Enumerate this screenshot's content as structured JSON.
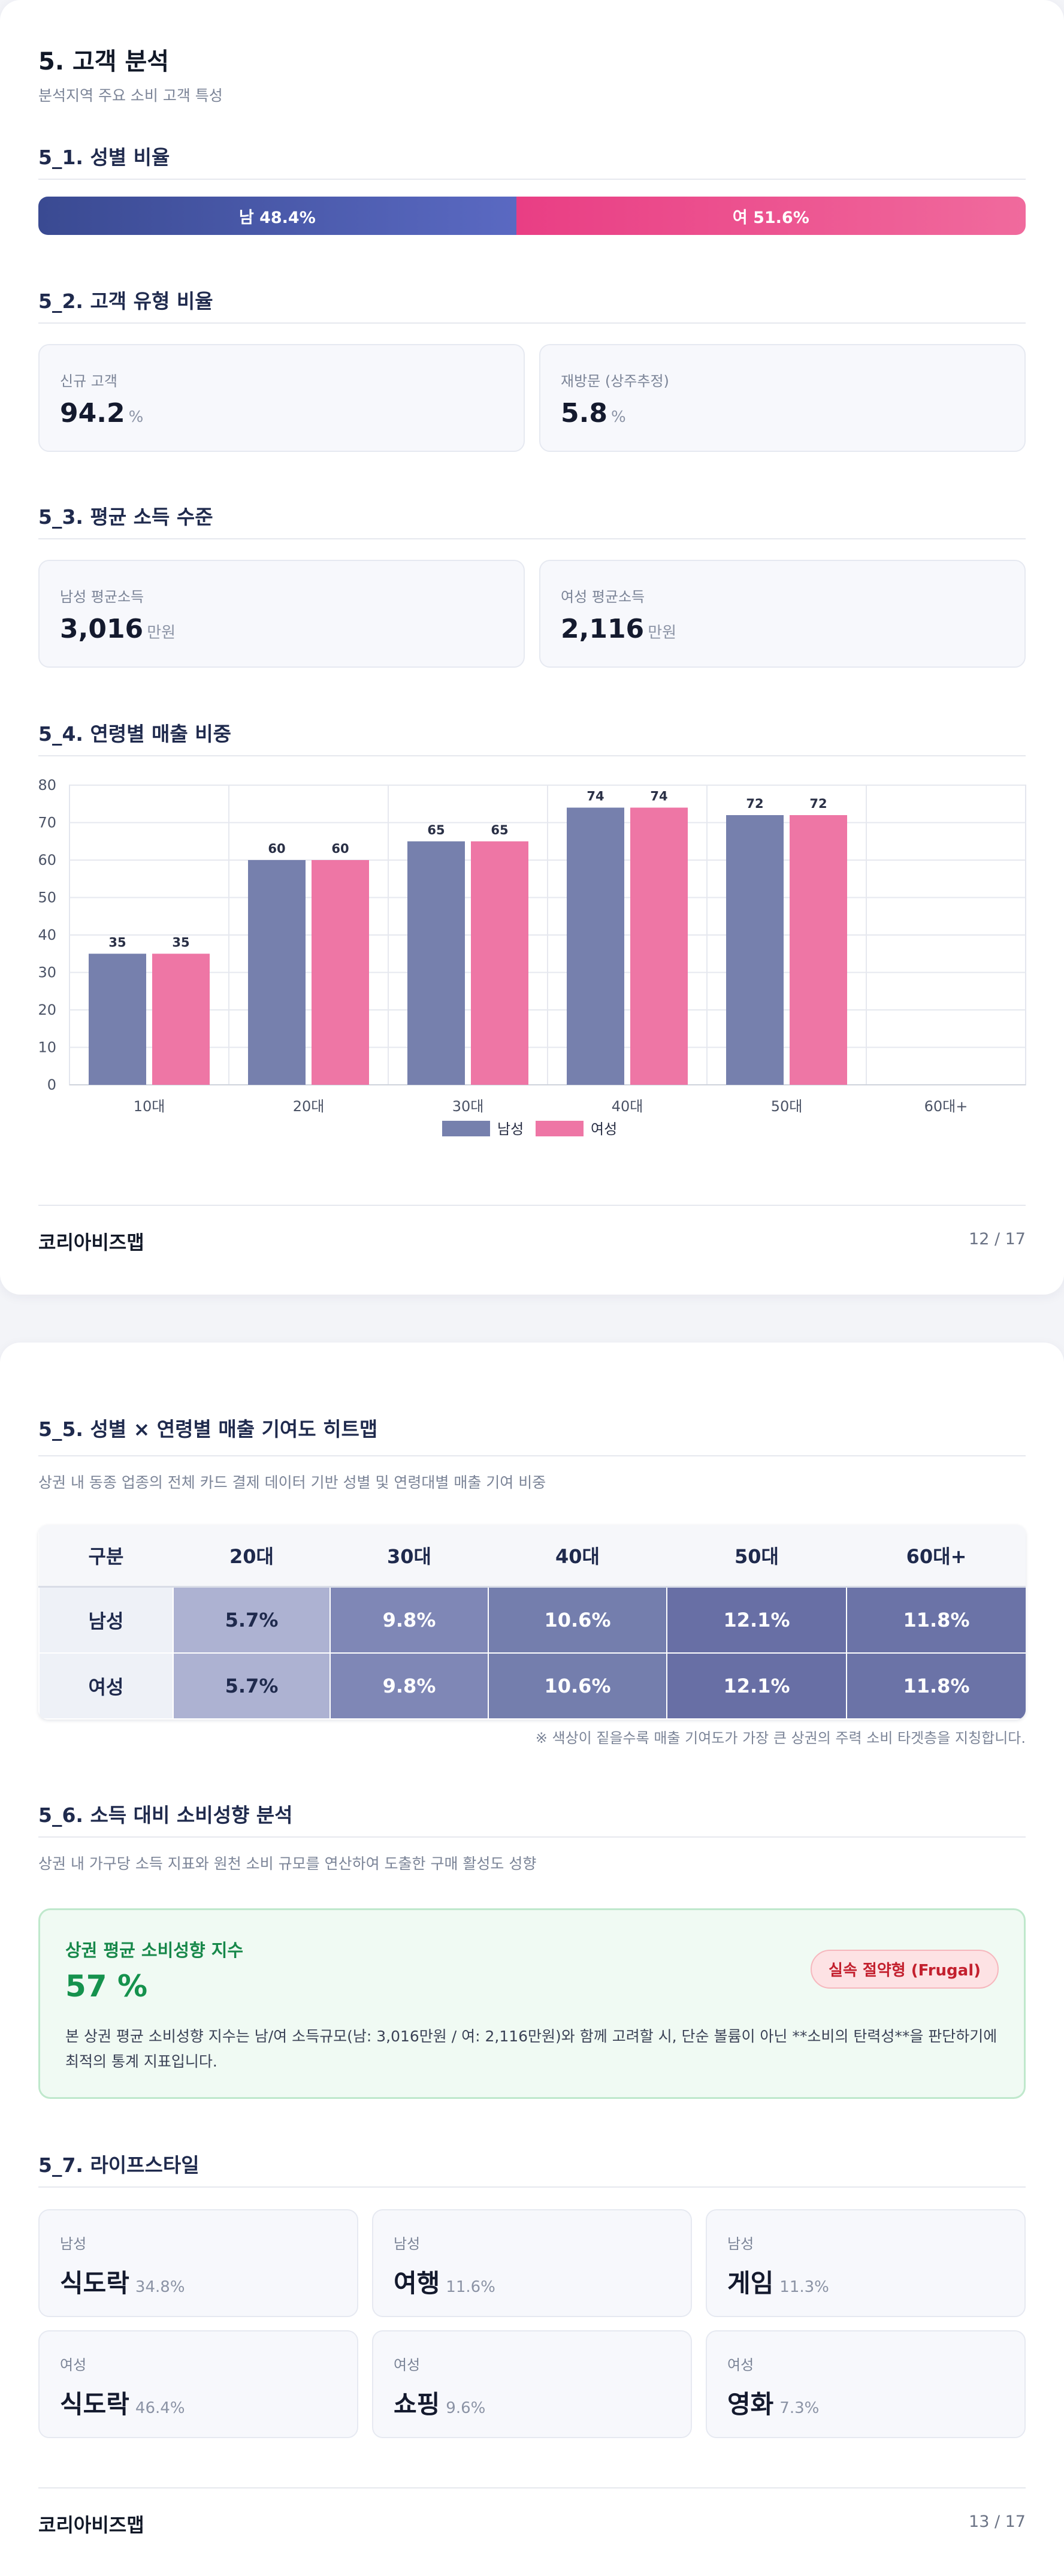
{
  "page1": {
    "title": "5. 고객 분석",
    "subtitle": "분석지역 주요 소비 고객 특성",
    "s51": {
      "heading": "5_1. 성별 비율",
      "male": {
        "label": "남 48.4%",
        "value": 48.4,
        "color": "#4a59a8"
      },
      "female": {
        "label": "여 51.6%",
        "value": 51.6,
        "color": "#ea4d8c"
      }
    },
    "s52": {
      "heading": "5_2. 고객 유형 비율",
      "cards": [
        {
          "label": "신규 고객",
          "value": "94.2",
          "unit": "%"
        },
        {
          "label": "재방문 (상주추정)",
          "value": "5.8",
          "unit": "%"
        }
      ]
    },
    "s53": {
      "heading": "5_3. 평균 소득 수준",
      "cards": [
        {
          "label": "남성 평균소득",
          "value": "3,016",
          "unit": "만원"
        },
        {
          "label": "여성 평균소득",
          "value": "2,116",
          "unit": "만원"
        }
      ]
    },
    "s54": {
      "heading": "5_4. 연령별 매출 비중"
    },
    "footer": {
      "brand": "코리아비즈맵",
      "page": "12 / 17"
    }
  },
  "chart_data": {
    "type": "bar",
    "categories": [
      "10대",
      "20대",
      "30대",
      "40대",
      "50대",
      "60대+"
    ],
    "series": [
      {
        "name": "남성",
        "values": [
          35,
          60,
          65,
          74,
          72,
          null
        ],
        "color": "#7680ad"
      },
      {
        "name": "여성",
        "values": [
          35,
          60,
          65,
          74,
          72,
          null
        ],
        "color": "#ee76a5"
      }
    ],
    "ylim": [
      0,
      80
    ],
    "yticks": [
      0,
      10,
      20,
      30,
      40,
      50,
      60,
      70,
      80
    ],
    "grid": true,
    "legend": "bottom-center"
  },
  "page2": {
    "s55": {
      "heading": "5_5. 성별 × 연령별 매출 기여도 히트맵",
      "desc": "상권 내 동종 업종의 전체 카드 결제 데이터 기반 성별 및 연령대별 매출 기여 비중",
      "columns": [
        "구분",
        "20대",
        "30대",
        "40대",
        "50대",
        "60대+"
      ],
      "rows": [
        {
          "label": "남성",
          "cells": [
            "5.7%",
            "9.8%",
            "10.6%",
            "12.1%",
            "11.8%"
          ]
        },
        {
          "label": "여성",
          "cells": [
            "5.7%",
            "9.8%",
            "10.6%",
            "12.1%",
            "11.8%"
          ]
        }
      ],
      "cell_colors": [
        "#adb2d2",
        "#7f87b6",
        "#747ead",
        "#686fa5",
        "#6b73a7"
      ],
      "note": "※ 색상이 짙을수록 매출 기여도가 가장 큰 상권의 주력 소비 타겟층을 지칭합니다."
    },
    "s56": {
      "heading": "5_6. 소득 대비 소비성향 분석",
      "desc": "상권 내 가구당 소득 지표와 원천 소비 규모를 연산하여 도출한 구매 활성도 성향",
      "box_title": "상권 평균 소비성향 지수",
      "box_value": "57 %",
      "badge": "실속 절약형 (Frugal)",
      "body": "본 상권 평균 소비성향 지수는 남/여 소득규모(남: 3,016만원 / 여: 2,116만원)와 함께 고려할 시, 단순 볼륨이 아닌 **소비의 탄력성**을 판단하기에 최적의 통계 지표입니다."
    },
    "s57": {
      "heading": "5_7. 라이프스타일",
      "items": [
        {
          "gender": "남성",
          "name": "식도락",
          "pct": "34.8%"
        },
        {
          "gender": "남성",
          "name": "여행",
          "pct": "11.6%"
        },
        {
          "gender": "남성",
          "name": "게임",
          "pct": "11.3%"
        },
        {
          "gender": "여성",
          "name": "식도락",
          "pct": "46.4%"
        },
        {
          "gender": "여성",
          "name": "쇼핑",
          "pct": "9.6%"
        },
        {
          "gender": "여성",
          "name": "영화",
          "pct": "7.3%"
        }
      ]
    },
    "footer": {
      "brand": "코리아비즈맵",
      "page": "13 / 17"
    }
  }
}
